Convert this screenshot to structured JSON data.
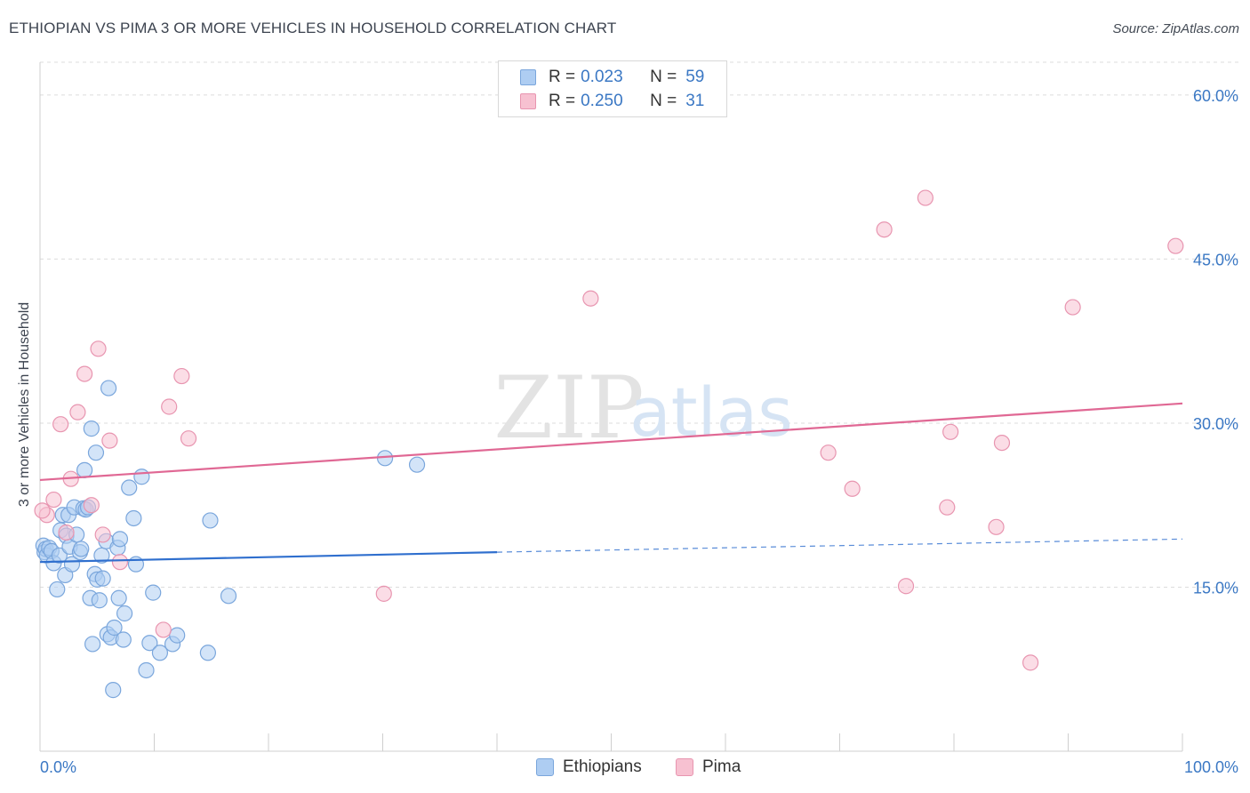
{
  "header": {
    "title": "ETHIOPIAN VS PIMA 3 OR MORE VEHICLES IN HOUSEHOLD CORRELATION CHART",
    "source": "Source: ZipAtlas.com"
  },
  "watermark": {
    "zip": "ZIP",
    "atlas": "atlas"
  },
  "legend": {
    "rows": [
      {
        "r_label": "R =",
        "r_value": "0.023",
        "n_label": "N =",
        "n_value": "59"
      },
      {
        "r_label": "R =",
        "r_value": "0.250",
        "n_label": "N =",
        "n_value": "31"
      }
    ]
  },
  "colors": {
    "blue_fill": "#aecdf2",
    "blue_stroke": "#7aa6dc",
    "blue_line": "#2f6fce",
    "pink_fill": "#f7c1d1",
    "pink_stroke": "#e895b0",
    "pink_line": "#e06894",
    "axis_text": "#3b78c4",
    "grid": "#dcdcdc"
  },
  "chart_data": {
    "type": "scatter",
    "title": "ETHIOPIAN VS PIMA 3 OR MORE VEHICLES IN HOUSEHOLD CORRELATION CHART",
    "xlabel": "",
    "ylabel": "3 or more Vehicles in Household",
    "xlim": [
      0,
      100
    ],
    "ylim": [
      0,
      63
    ],
    "x_tick_labels": [
      "0.0%",
      "100.0%"
    ],
    "y_ticks": [
      15,
      30,
      45,
      60
    ],
    "y_tick_labels": [
      "15.0%",
      "30.0%",
      "45.0%",
      "60.0%"
    ],
    "grid": true,
    "series": [
      {
        "name": "Ethiopians",
        "r": 0.023,
        "n": 59,
        "trend": {
          "x0": 0,
          "y0": 17.3,
          "x_solid_end": 40,
          "y_solid_end": 18.2,
          "x1": 100,
          "y1": 19.4
        },
        "points": [
          [
            0.3,
            18.8
          ],
          [
            0.4,
            18.2
          ],
          [
            0.5,
            18.5
          ],
          [
            0.6,
            17.9
          ],
          [
            0.8,
            18.6
          ],
          [
            1.0,
            18.3
          ],
          [
            1.2,
            17.2
          ],
          [
            1.5,
            14.8
          ],
          [
            1.7,
            17.9
          ],
          [
            1.8,
            20.2
          ],
          [
            2.0,
            21.6
          ],
          [
            2.2,
            16.1
          ],
          [
            2.3,
            19.7
          ],
          [
            2.5,
            21.6
          ],
          [
            2.6,
            18.7
          ],
          [
            2.8,
            17.1
          ],
          [
            3.0,
            22.3
          ],
          [
            3.2,
            19.8
          ],
          [
            3.5,
            18.2
          ],
          [
            3.6,
            18.5
          ],
          [
            3.8,
            22.2
          ],
          [
            3.9,
            25.7
          ],
          [
            4.0,
            22.1
          ],
          [
            4.2,
            22.3
          ],
          [
            4.4,
            14.0
          ],
          [
            4.5,
            29.5
          ],
          [
            4.6,
            9.8
          ],
          [
            4.8,
            16.2
          ],
          [
            4.9,
            27.3
          ],
          [
            5.0,
            15.7
          ],
          [
            5.2,
            13.8
          ],
          [
            5.4,
            17.9
          ],
          [
            5.5,
            15.8
          ],
          [
            5.8,
            19.2
          ],
          [
            5.9,
            10.7
          ],
          [
            6.0,
            33.2
          ],
          [
            6.2,
            10.4
          ],
          [
            6.4,
            5.6
          ],
          [
            6.5,
            11.3
          ],
          [
            6.8,
            18.6
          ],
          [
            6.9,
            14.0
          ],
          [
            7.0,
            19.4
          ],
          [
            7.3,
            10.2
          ],
          [
            7.4,
            12.6
          ],
          [
            7.8,
            24.1
          ],
          [
            8.2,
            21.3
          ],
          [
            8.4,
            17.1
          ],
          [
            8.9,
            25.1
          ],
          [
            9.3,
            7.4
          ],
          [
            9.6,
            9.9
          ],
          [
            9.9,
            14.5
          ],
          [
            10.5,
            9.0
          ],
          [
            11.6,
            9.8
          ],
          [
            12.0,
            10.6
          ],
          [
            14.7,
            9.0
          ],
          [
            14.9,
            21.1
          ],
          [
            16.5,
            14.2
          ],
          [
            30.2,
            26.8
          ],
          [
            33.0,
            26.2
          ]
        ]
      },
      {
        "name": "Pima",
        "r": 0.25,
        "n": 31,
        "trend": {
          "x0": 0,
          "y0": 24.8,
          "x1": 100,
          "y1": 31.8
        },
        "points": [
          [
            0.6,
            21.6
          ],
          [
            1.2,
            23.0
          ],
          [
            1.8,
            29.9
          ],
          [
            2.3,
            20.0
          ],
          [
            2.7,
            24.9
          ],
          [
            3.3,
            31.0
          ],
          [
            3.9,
            34.5
          ],
          [
            4.5,
            22.5
          ],
          [
            5.1,
            36.8
          ],
          [
            5.5,
            19.8
          ],
          [
            6.1,
            28.4
          ],
          [
            7.0,
            17.3
          ],
          [
            10.8,
            11.1
          ],
          [
            11.3,
            31.5
          ],
          [
            12.4,
            34.3
          ],
          [
            13.0,
            28.6
          ],
          [
            30.1,
            14.4
          ],
          [
            48.2,
            41.4
          ],
          [
            69.0,
            27.3
          ],
          [
            71.1,
            24.0
          ],
          [
            73.9,
            47.7
          ],
          [
            75.8,
            15.1
          ],
          [
            77.5,
            50.6
          ],
          [
            79.4,
            22.3
          ],
          [
            79.7,
            29.2
          ],
          [
            83.7,
            20.5
          ],
          [
            84.2,
            28.2
          ],
          [
            86.7,
            8.1
          ],
          [
            90.4,
            40.6
          ],
          [
            99.4,
            46.2
          ],
          [
            0.2,
            22.0
          ]
        ]
      }
    ]
  }
}
